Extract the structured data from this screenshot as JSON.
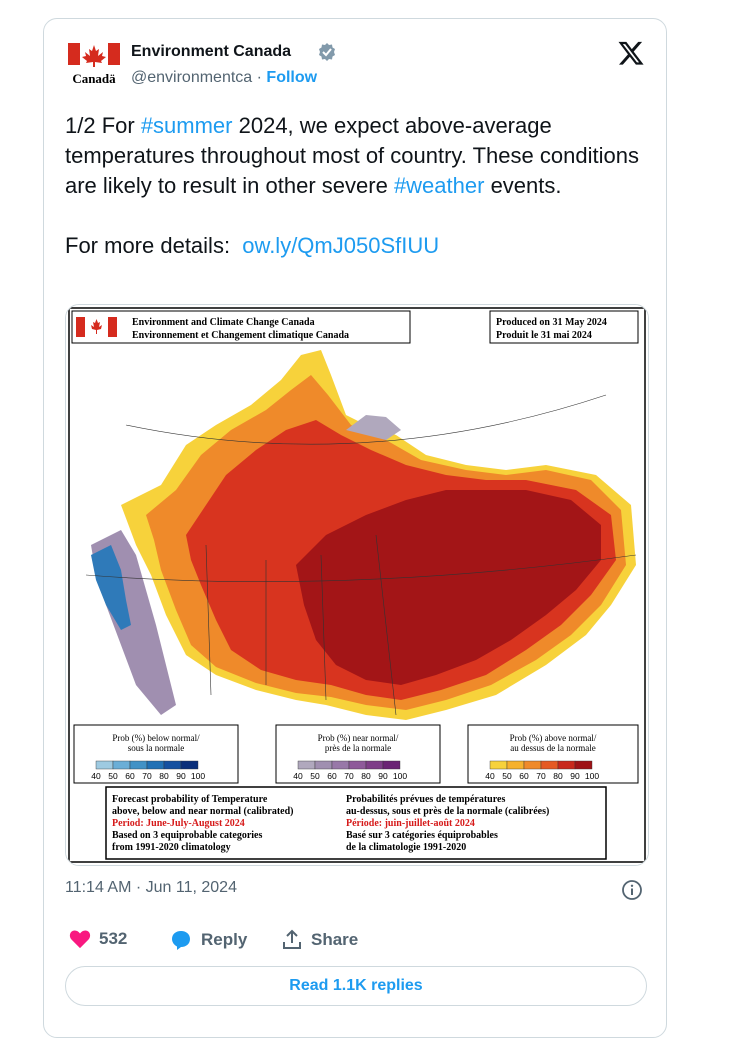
{
  "author": {
    "name": "Environment Canada",
    "handle": "@environmentca",
    "follow_label": "Follow",
    "logo_wordmark": "Canadä"
  },
  "tweet": {
    "text_before": "1/2 For ",
    "hashtag1": "#summer",
    "text_mid": " 2024, we expect above-average temperatures throughout most of country. These conditions are likely to result in other severe ",
    "hashtag2": "#weather",
    "text_after": " events.",
    "details_label": "For more details:  ",
    "link": "ow.ly/QmJ050SfIUU"
  },
  "map": {
    "header_en": "Environment and Climate Change Canada",
    "header_fr": "Environnement et Changement climatique Canada",
    "produced_en": "Produced on 31 May 2024",
    "produced_fr": "Produit le 31 mai 2024",
    "legend_below_title1": "Prob (%) below normal/",
    "legend_below_title2": "sous la normale",
    "legend_near_title1": "Prob (%) near normal/",
    "legend_near_title2": "près de la normale",
    "legend_above_title1": "Prob (%) above normal/",
    "legend_above_title2": "au dessus de la normale",
    "legend_ticks": [
      "40",
      "50",
      "60",
      "70",
      "80",
      "90",
      "100"
    ],
    "below_colors": [
      "#9ecae1",
      "#6baed6",
      "#4292c6",
      "#2171b5",
      "#1450a0",
      "#0b2f7a"
    ],
    "near_colors": [
      "#b0a8bd",
      "#a08fb0",
      "#9878a8",
      "#8e5a9a",
      "#7e3e88",
      "#6a2474"
    ],
    "above_colors": [
      "#f7d23b",
      "#f6b12e",
      "#ef8a2a",
      "#e55a23",
      "#c8281c",
      "#9e1216"
    ],
    "info_en1": "Forecast probability of Temperature",
    "info_en2": "above, below and near normal (calibrated)",
    "info_en3": "Period: June-July-August 2024",
    "info_en4": "Based on 3 equiprobable categories",
    "info_en5": "from 1991-2020 climatology",
    "info_fr1": "Probabilités prévues de températures",
    "info_fr2": "au-dessus, sous et près de la normale (calibrées)",
    "info_fr3": "Période: juin-juillet-août 2024",
    "info_fr4": "Basé sur 3 catégories équiprobables",
    "info_fr5": "de la climatologie 1991-2020"
  },
  "meta": {
    "timestamp": "11:14 AM · Jun 11, 2024",
    "likes": "532",
    "reply_label": "Reply",
    "share_label": "Share",
    "read_replies": "Read 1.1K replies"
  },
  "colors": {
    "accent": "#1d9bf0",
    "like": "#f91880",
    "text_secondary": "#536471"
  },
  "icons": [
    "canada-flag-icon",
    "verified-badge-icon",
    "x-logo-icon",
    "info-icon",
    "heart-icon",
    "reply-icon",
    "share-icon"
  ]
}
